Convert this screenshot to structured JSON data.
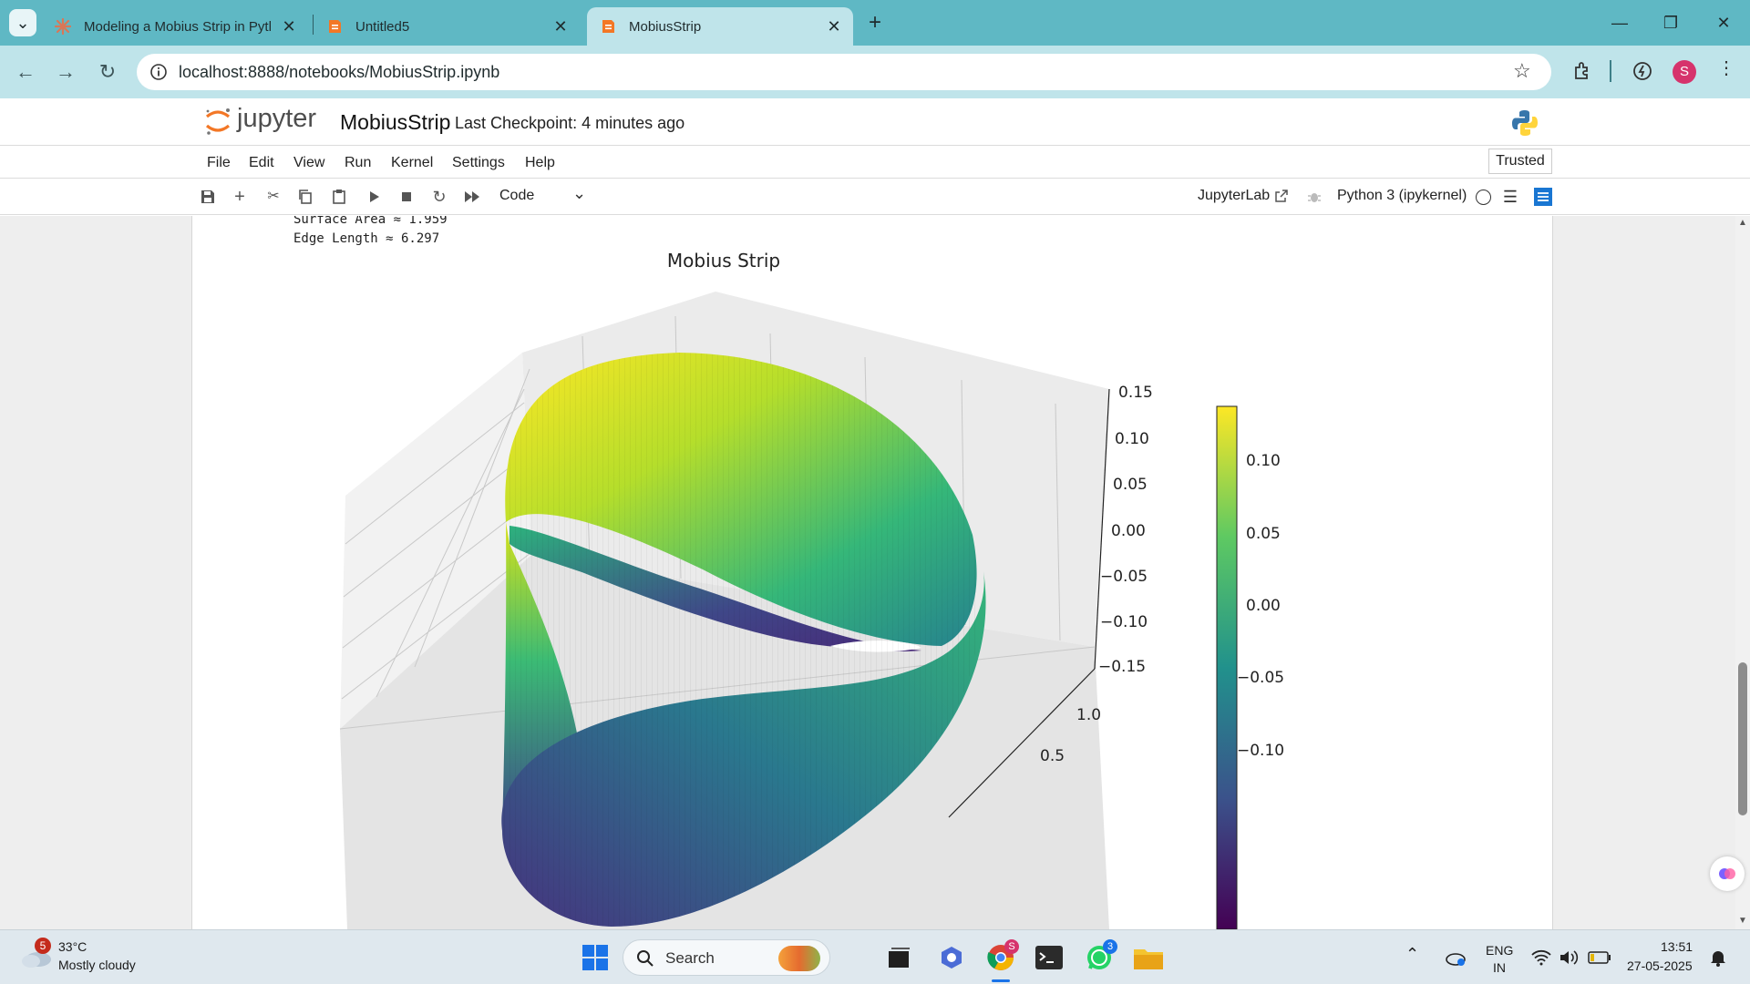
{
  "browser": {
    "tabs": [
      {
        "title": "Modeling a Mobius Strip in Pyth",
        "icon": "claude-icon"
      },
      {
        "title": "Untitled5",
        "icon": "jupyter-notebook-icon"
      },
      {
        "title": "MobiusStrip",
        "icon": "jupyter-notebook-icon"
      }
    ],
    "url": "localhost:8888/notebooks/MobiusStrip.ipynb",
    "profile_initial": "S",
    "accent": "#5fb8c4"
  },
  "jupyter": {
    "logo_text": "jupyter",
    "notebook_name": "MobiusStrip",
    "checkpoint": "Last Checkpoint: 4 minutes ago",
    "trusted": "Trusted",
    "menu": [
      "File",
      "Edit",
      "View",
      "Run",
      "Kernel",
      "Settings",
      "Help"
    ],
    "cell_type": "Code",
    "jupyterlab_link": "JupyterLab",
    "kernel": "Python 3 (ipykernel)"
  },
  "output": {
    "lines": [
      "Surface Area ≈ 1.959",
      "Edge Length ≈ 6.297"
    ]
  },
  "chart_data": {
    "type": "surface3d",
    "title": "Mobius Strip",
    "z_ticks": [
      "0.15",
      "0.10",
      "0.05",
      "0.00",
      "−0.05",
      "−0.10",
      "−0.15"
    ],
    "y_ticks": [
      "1.0",
      "0.5"
    ],
    "colorbar_ticks": [
      "0.10",
      "0.05",
      "0.00",
      "−0.05",
      "−0.10"
    ],
    "colormap": "viridis",
    "zlim": [
      -0.15,
      0.15
    ]
  },
  "taskbar": {
    "weather_temp": "33°C",
    "weather_desc": "Mostly cloudy",
    "weather_badge": "5",
    "search_placeholder": "Search",
    "lang1": "ENG",
    "lang2": "IN",
    "time": "13:51",
    "date": "27-05-2025",
    "chrome_badge": "S",
    "whatsapp_badge": "3"
  }
}
